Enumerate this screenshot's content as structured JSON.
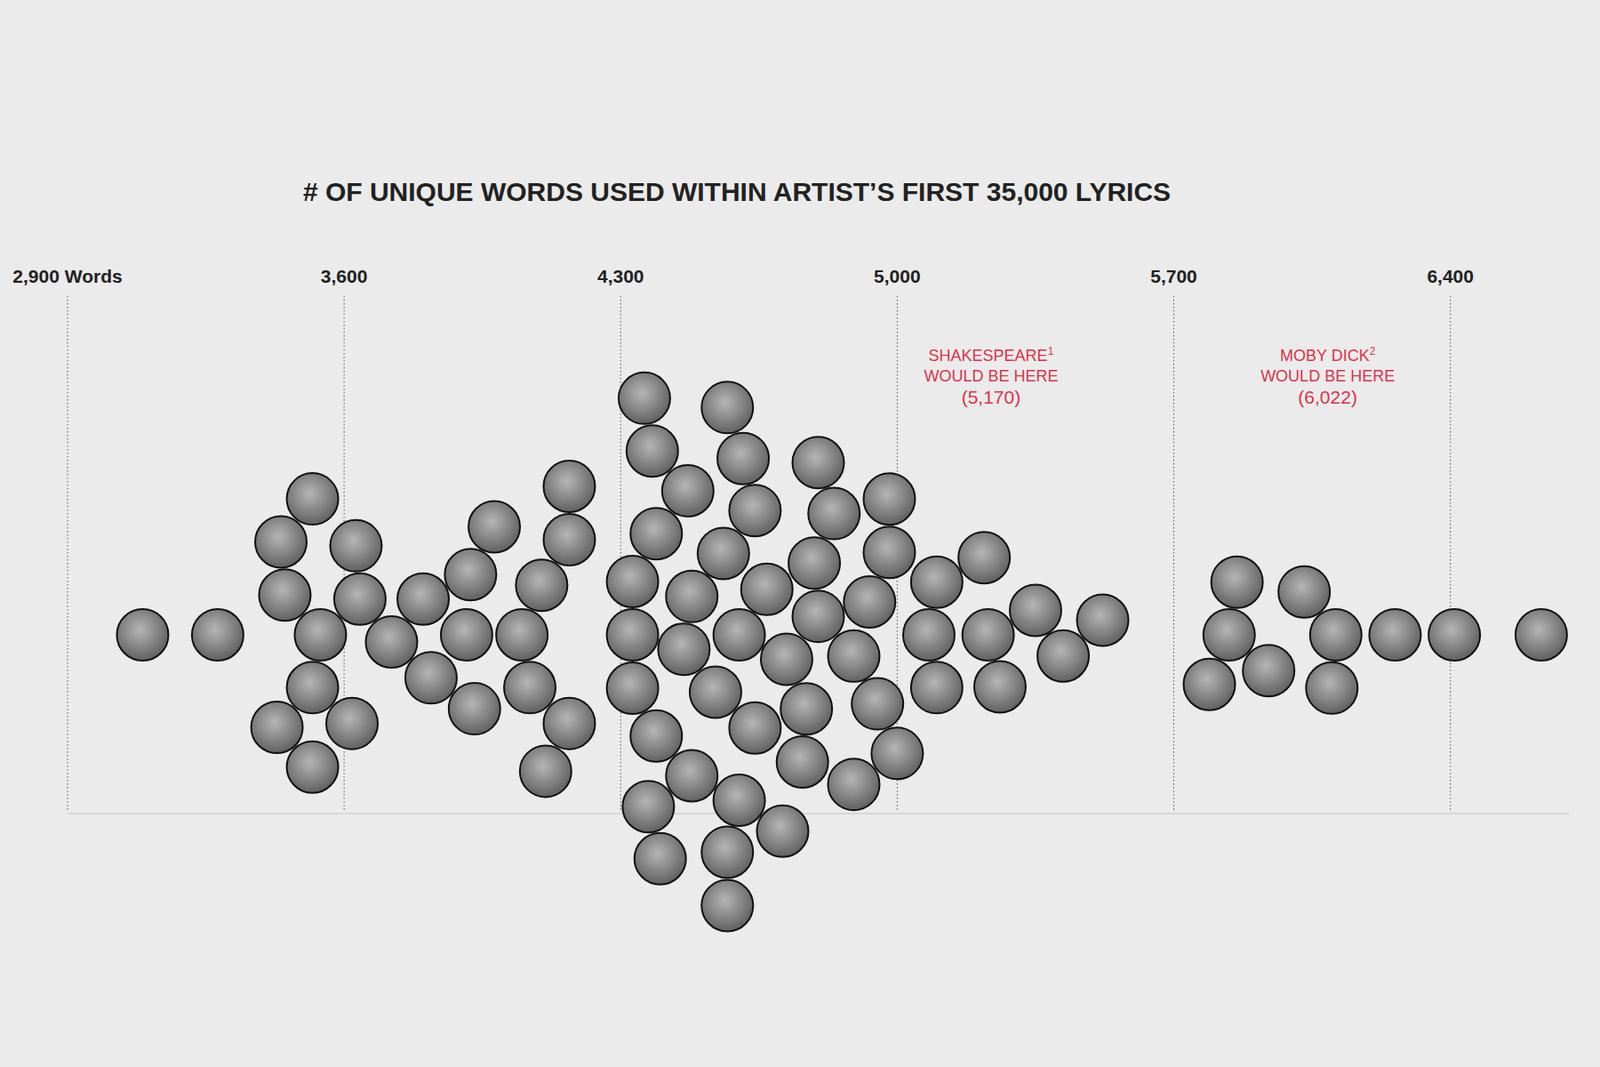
{
  "chart_data": {
    "type": "swarm",
    "title": "# OF UNIQUE WORDS USED WITHIN ARTIST’S FIRST 35,000 LYRICS",
    "xlim": [
      2900,
      6700
    ],
    "xticks": [
      {
        "value": 2900,
        "label": "2,900 Words"
      },
      {
        "value": 3600,
        "label": "3,600"
      },
      {
        "value": 4300,
        "label": "4,300"
      },
      {
        "value": 5000,
        "label": "5,000"
      },
      {
        "value": 5700,
        "label": "5,700"
      },
      {
        "value": 6400,
        "label": "6,400"
      }
    ],
    "grid": true,
    "color": "#5a5a5a",
    "values": [
      3090,
      3280,
      3540,
      3520,
      3450,
      3640,
      3430,
      3620,
      3440,
      3630,
      3520,
      3520,
      3720,
      3800,
      3820,
      3910,
      3920,
      3930,
      3980,
      4050,
      4070,
      4100,
      4170,
      4170,
      4110,
      4170,
      4330,
      4330,
      4330,
      4390,
      4390,
      4460,
      4480,
      4540,
      4560,
      4600,
      4640,
      4640,
      4720,
      4480,
      4600,
      4610,
      4470,
      4370,
      4570,
      4380,
      4570,
      4400,
      4570,
      4360,
      4670,
      4710,
      4770,
      4800,
      4790,
      4760,
      4840,
      4890,
      4930,
      4950,
      4980,
      5000,
      4800,
      4890,
      4980,
      5080,
      5100,
      5100,
      5230,
      5260,
      5220,
      5350,
      5420,
      5520,
      5840,
      5790,
      5940,
      5860,
      6110,
      6100,
      6030,
      6260,
      6410,
      6630
    ],
    "annotations": [
      {
        "lines": [
          "SHAKESPEARE",
          "WOULD BE HERE",
          "(5,170)"
        ],
        "footnote": "1",
        "value": 5170,
        "color": "#d8344b"
      },
      {
        "lines": [
          "MOBY DICK",
          "WOULD BE HERE",
          "(6,022)"
        ],
        "footnote": "2",
        "value": 6022,
        "color": "#d8344b"
      }
    ]
  }
}
